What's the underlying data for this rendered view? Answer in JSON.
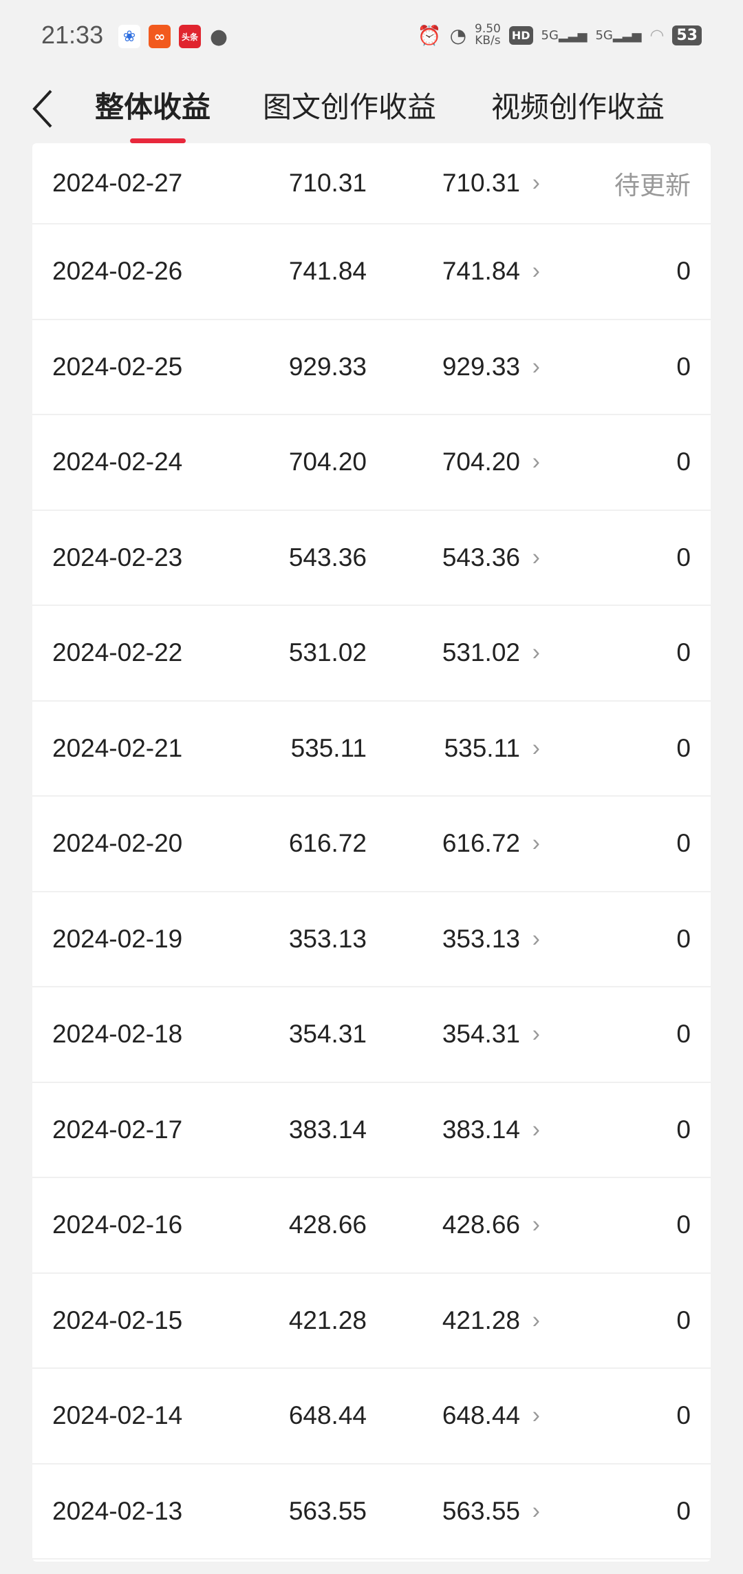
{
  "status_bar": {
    "time": "21:33",
    "app_icons": [
      "baidu-icon",
      "kuaishou-icon",
      "toutiao-icon",
      "message-icon"
    ],
    "toutiao_label": "头条",
    "speed": "9.50",
    "speed_unit": "KB/s",
    "hd": "HD",
    "sim": "5G",
    "battery": "53"
  },
  "header": {
    "back_icon": "chevron-left-icon",
    "tabs": [
      {
        "label": "整体收益",
        "active": true
      },
      {
        "label": "图文创作收益",
        "active": false
      },
      {
        "label": "视频创作收益",
        "active": false
      }
    ],
    "accent": "#e8283c"
  },
  "rows": [
    {
      "date": "2024-02-27",
      "total": "710.31",
      "graphic": "710.31",
      "video": "待更新"
    },
    {
      "date": "2024-02-26",
      "total": "741.84",
      "graphic": "741.84",
      "video": "0"
    },
    {
      "date": "2024-02-25",
      "total": "929.33",
      "graphic": "929.33",
      "video": "0"
    },
    {
      "date": "2024-02-24",
      "total": "704.20",
      "graphic": "704.20",
      "video": "0"
    },
    {
      "date": "2024-02-23",
      "total": "543.36",
      "graphic": "543.36",
      "video": "0"
    },
    {
      "date": "2024-02-22",
      "total": "531.02",
      "graphic": "531.02",
      "video": "0"
    },
    {
      "date": "2024-02-21",
      "total": "535.11",
      "graphic": "535.11",
      "video": "0"
    },
    {
      "date": "2024-02-20",
      "total": "616.72",
      "graphic": "616.72",
      "video": "0"
    },
    {
      "date": "2024-02-19",
      "total": "353.13",
      "graphic": "353.13",
      "video": "0"
    },
    {
      "date": "2024-02-18",
      "total": "354.31",
      "graphic": "354.31",
      "video": "0"
    },
    {
      "date": "2024-02-17",
      "total": "383.14",
      "graphic": "383.14",
      "video": "0"
    },
    {
      "date": "2024-02-16",
      "total": "428.66",
      "graphic": "428.66",
      "video": "0"
    },
    {
      "date": "2024-02-15",
      "total": "421.28",
      "graphic": "421.28",
      "video": "0"
    },
    {
      "date": "2024-02-14",
      "total": "648.44",
      "graphic": "648.44",
      "video": "0"
    },
    {
      "date": "2024-02-13",
      "total": "563.55",
      "graphic": "563.55",
      "video": "0"
    }
  ]
}
